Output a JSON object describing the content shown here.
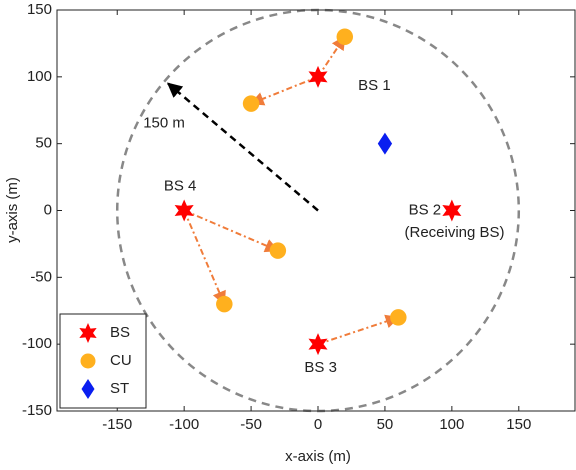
{
  "chart_data": {
    "type": "scatter",
    "xlabel": "x-axis (m)",
    "ylabel": "y-axis (m)",
    "xlim": [
      -195,
      192
    ],
    "ylim": [
      -150,
      150
    ],
    "xticks": [
      -150,
      -100,
      -50,
      0,
      50,
      100,
      150
    ],
    "yticks": [
      -150,
      -100,
      -50,
      0,
      50,
      100,
      150
    ],
    "legend": "lower left",
    "series": [
      {
        "name": "BS",
        "color": "#ff0000",
        "marker": "star",
        "x": [
          0,
          100,
          0,
          -100
        ],
        "values": [
          100,
          0,
          -100,
          0
        ]
      },
      {
        "name": "CU",
        "color": "#ffb01e",
        "marker": "circle",
        "x": [
          20,
          -50,
          -30,
          -70,
          60
        ],
        "values": [
          130,
          80,
          -30,
          -70,
          -80
        ]
      },
      {
        "name": "ST",
        "color": "#0a1ef0",
        "marker": "diamond",
        "x": [
          50
        ],
        "values": [
          50
        ]
      }
    ],
    "circle": {
      "center": [
        0,
        0
      ],
      "radius": 150,
      "color": "#888888"
    },
    "arrows": [
      {
        "from": [
          0,
          100
        ],
        "to": [
          20,
          130
        ],
        "color": "#f07c3a"
      },
      {
        "from": [
          0,
          100
        ],
        "to": [
          -50,
          80
        ],
        "color": "#f07c3a"
      },
      {
        "from": [
          -100,
          0
        ],
        "to": [
          -30,
          -30
        ],
        "color": "#f07c3a"
      },
      {
        "from": [
          -100,
          0
        ],
        "to": [
          -70,
          -70
        ],
        "color": "#f07c3a"
      },
      {
        "from": [
          0,
          -100
        ],
        "to": [
          60,
          -80
        ],
        "color": "#f07c3a"
      },
      {
        "from": [
          0,
          0
        ],
        "to": [
          -112,
          95
        ],
        "color": "#000000"
      }
    ],
    "annotations": [
      {
        "text": "BS 1",
        "x": 30,
        "y": 93,
        "anchor": "start"
      },
      {
        "text": "150 m",
        "x": -115,
        "y": 65,
        "anchor": "middle"
      },
      {
        "text": "BS 4",
        "x": -103,
        "y": 18,
        "anchor": "middle"
      },
      {
        "text": "BS 2",
        "x": 92,
        "y": 0,
        "anchor": "end"
      },
      {
        "text": "(Receiving BS)",
        "x": 102,
        "y": -17,
        "anchor": "middle"
      },
      {
        "text": "BS 3",
        "x": 2,
        "y": -118,
        "anchor": "middle"
      }
    ]
  }
}
